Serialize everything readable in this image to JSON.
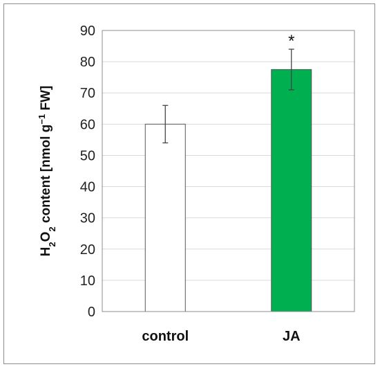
{
  "chart_data": {
    "type": "bar",
    "categories": [
      "control",
      "JA"
    ],
    "values": [
      60,
      77.5
    ],
    "errors": [
      6,
      6.5
    ],
    "bar_colors": [
      "#ffffff",
      "#00b050"
    ],
    "bar_edge_color": "#555555",
    "annotations": [
      {
        "category": "JA",
        "text": "*"
      }
    ],
    "ylabel": {
      "p1": "H",
      "s1": "2",
      "p2": "O",
      "s2": "2",
      "p3": " content [nmol g",
      "sup": "−1",
      "p4": " FW]"
    },
    "ylim": [
      0,
      90
    ],
    "yticks": [
      0,
      10,
      20,
      30,
      40,
      50,
      60,
      70,
      80,
      90
    ],
    "grid": true,
    "legend": false
  }
}
